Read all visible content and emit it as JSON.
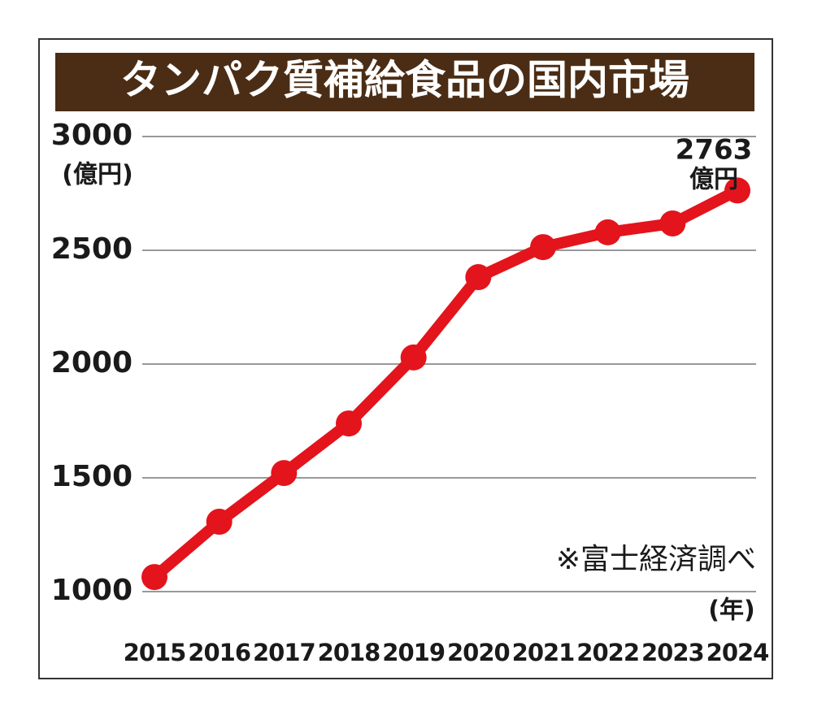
{
  "chart_data": {
    "type": "line",
    "title": "タンパク質補給食品の国内市場",
    "y_label": "(億円)",
    "x_label": "(年)",
    "source": "※富士経済調べ",
    "categories": [
      "2015",
      "2016",
      "2017",
      "2018",
      "2019",
      "2020",
      "2021",
      "2022",
      "2023",
      "2024"
    ],
    "series": [
      {
        "color": "#e3141c",
        "values": [
          1064,
          1307,
          1521,
          1739,
          2029,
          2382,
          2514,
          2579,
          2618,
          2763
        ]
      }
    ],
    "data_label_unit": "億円",
    "ylim": [
      1000,
      3000
    ],
    "yticks": [
      1000,
      1500,
      2000,
      2500,
      3000
    ],
    "grid": true
  }
}
